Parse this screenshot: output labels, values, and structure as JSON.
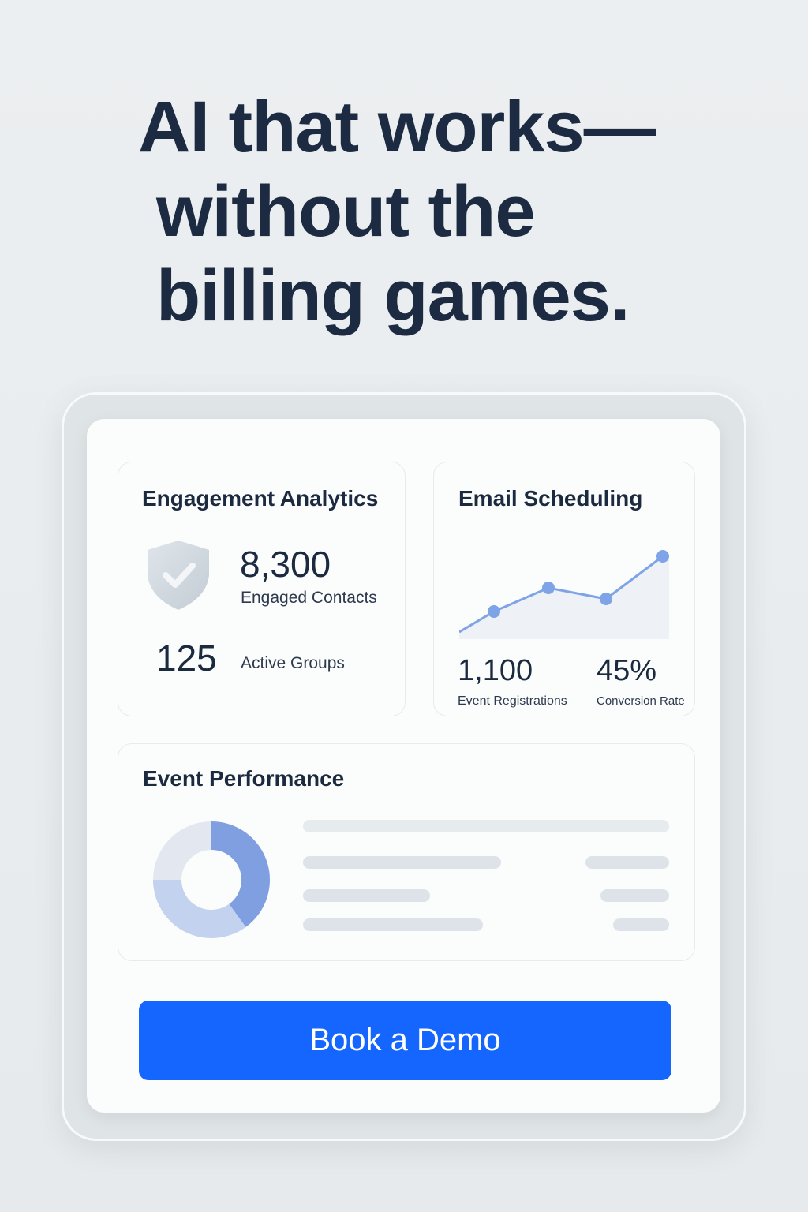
{
  "headline": {
    "line1": "AI that works—",
    "line2": "without the",
    "line3": "billing games."
  },
  "engagement": {
    "title": "Engagement Analytics",
    "contacts_value": "8,300",
    "contacts_label": "Engaged Contacts",
    "groups_value": "125",
    "groups_label": "Active Groups",
    "icon": "shield-check-icon"
  },
  "email": {
    "title": "Email Scheduling",
    "registrations_value": "1,100",
    "registrations_label": "Event Registrations",
    "conversion_value": "45%",
    "conversion_label": "Conversion Rate",
    "line_color": "#7ea3e6",
    "area_color": "#eef2f7"
  },
  "event": {
    "title": "Event Performance",
    "donut_shares": [
      0.4,
      0.35,
      0.25
    ],
    "donut_colors": [
      "#7f9fe0",
      "#c3d2ef",
      "#e3e8f0"
    ]
  },
  "cta": {
    "label": "Book a Demo",
    "color": "#1565ff"
  }
}
